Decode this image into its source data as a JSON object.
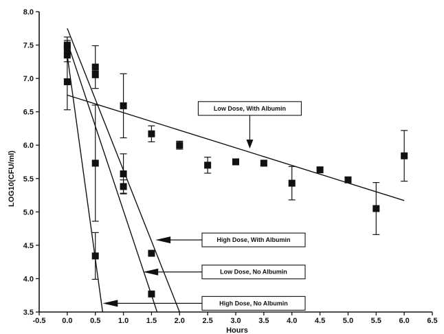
{
  "chart_data": {
    "type": "scatter",
    "title": "",
    "xlabel": "Hours",
    "ylabel": "LOG10(CFU/ml)",
    "xlim": [
      -0.5,
      6.5
    ],
    "ylim": [
      3.5,
      8.0
    ],
    "x_ticks": [
      "-0.5",
      "0.0",
      "0.5",
      "1.0",
      "1.5",
      "2.0",
      "2.5",
      "3.0",
      "3.5",
      "4.0",
      "4.5",
      "5.0",
      "5.5",
      "6.0",
      "6.5"
    ],
    "y_ticks": [
      "3.5",
      "4.0",
      "4.5",
      "5.0",
      "5.5",
      "6.0",
      "6.5",
      "7.0",
      "7.5",
      "8.0"
    ],
    "grid": false,
    "marker_color": "#111111",
    "points": [
      {
        "x": 0.0,
        "y": 7.5,
        "err": 0.12
      },
      {
        "x": 0.0,
        "y": 7.45,
        "err": 0.12
      },
      {
        "x": 0.0,
        "y": 7.35,
        "err": 0.1
      },
      {
        "x": 0.0,
        "y": 6.95,
        "err": 0.42
      },
      {
        "x": 0.5,
        "y": 7.17,
        "err": 0.32
      },
      {
        "x": 0.5,
        "y": 7.06,
        "err": 0.05
      },
      {
        "x": 0.5,
        "y": 5.73,
        "err": 0.87
      },
      {
        "x": 0.5,
        "y": 4.34,
        "err": 0.35
      },
      {
        "x": 1.0,
        "y": 6.59,
        "err": 0.48
      },
      {
        "x": 1.0,
        "y": 5.57,
        "err": 0.3
      },
      {
        "x": 1.0,
        "y": 5.38,
        "err": 0.1
      },
      {
        "x": 1.5,
        "y": 6.17,
        "err": 0.12
      },
      {
        "x": 1.5,
        "y": 4.38,
        "err": 0.04
      },
      {
        "x": 1.5,
        "y": 3.77,
        "err": 0.03
      },
      {
        "x": 2.0,
        "y": 6.0,
        "err": 0.06
      },
      {
        "x": 2.5,
        "y": 5.7,
        "err": 0.12
      },
      {
        "x": 3.0,
        "y": 5.75,
        "err": 0.03
      },
      {
        "x": 3.5,
        "y": 5.73,
        "err": 0.03
      },
      {
        "x": 4.0,
        "y": 5.43,
        "err": 0.25
      },
      {
        "x": 4.5,
        "y": 5.63,
        "err": 0.04
      },
      {
        "x": 5.0,
        "y": 5.48,
        "err": 0.04
      },
      {
        "x": 5.5,
        "y": 5.05,
        "err": 0.39
      },
      {
        "x": 6.0,
        "y": 5.84,
        "err": 0.38
      }
    ],
    "series": [
      {
        "name": "Low Dose, With Albumin",
        "line": {
          "x1": 0.0,
          "y1": 6.75,
          "x2": 6.0,
          "y2": 5.17
        }
      },
      {
        "name": "High Dose, With Albumin",
        "line": {
          "x1": 0.0,
          "y1": 7.75,
          "x2": 2.0,
          "y2": 3.5
        }
      },
      {
        "name": "Low Dose, No Albumin",
        "line": {
          "x1": 0.0,
          "y1": 7.55,
          "x2": 1.6,
          "y2": 3.5
        }
      },
      {
        "name": "High Dose, No Albumin",
        "line": {
          "x1": 0.0,
          "y1": 7.35,
          "x2": 0.63,
          "y2": 3.5
        }
      }
    ],
    "annotations": [
      {
        "text": "Low Dose, With Albumin",
        "series": 0,
        "box_at": [
          3.25,
          6.55
        ],
        "arrow_to": [
          3.25,
          5.95
        ],
        "direction": "down"
      },
      {
        "text": "High Dose, With Albumin",
        "series": 1,
        "box_at": [
          2.4,
          4.58
        ],
        "arrow_to": [
          1.57,
          4.58
        ],
        "direction": "left"
      },
      {
        "text": "Low Dose, No Albumin",
        "series": 2,
        "box_at": [
          2.4,
          4.1
        ],
        "arrow_to": [
          1.35,
          4.1
        ],
        "direction": "left"
      },
      {
        "text": "High Dose, No Albumin",
        "series": 3,
        "box_at": [
          2.4,
          3.63
        ],
        "arrow_to": [
          0.63,
          3.63
        ],
        "direction": "left"
      }
    ]
  }
}
